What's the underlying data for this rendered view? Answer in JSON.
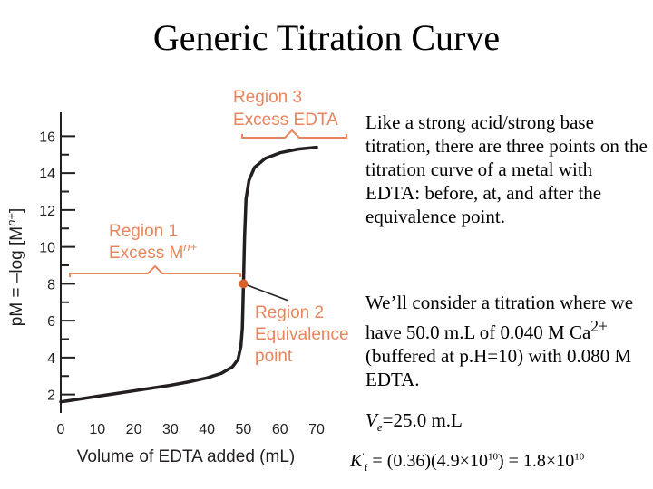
{
  "slide": {
    "title": "Generic Titration Curve",
    "para1": "Like a strong acid/strong base titration, there are three points on the titration curve of a metal with EDTA: before, at, and after the equivalence point.",
    "para2_before": "We’ll consider a titration where we have 50.0 m.L of 0.040 M Ca",
    "para2_sup": "2+",
    "para2_after": " (buffered at p.H=10) with 0.080 M EDTA.",
    "ve_symbol": "V",
    "ve_sub": "e",
    "ve_value": "=25.0 m.L",
    "kf_symbol": "K",
    "kf_prime": "′",
    "kf_sub": "f",
    "kf_eq_1": " = (0.36)(4.9×10",
    "kf_exp_1": "10",
    "kf_eq_2": ") = 1.8×10",
    "kf_exp_2": "10"
  },
  "chart_data": {
    "type": "line",
    "xlabel": "Volume of EDTA added (mL)",
    "ylabel_prefix": "pM = –log [M",
    "ylabel_sup": "n+",
    "ylabel_suffix": "]",
    "xlim": [
      0,
      70
    ],
    "ylim": [
      1,
      17
    ],
    "x_ticks": [
      0,
      10,
      20,
      30,
      40,
      50,
      60,
      70
    ],
    "y_ticks": [
      2,
      4,
      6,
      8,
      10,
      12,
      14,
      16
    ],
    "grid": false,
    "series": [
      {
        "points": [
          [
            0,
            1.6
          ],
          [
            5,
            1.75
          ],
          [
            10,
            1.9
          ],
          [
            15,
            2.05
          ],
          [
            20,
            2.2
          ],
          [
            25,
            2.35
          ],
          [
            30,
            2.5
          ],
          [
            35,
            2.68
          ],
          [
            40,
            2.9
          ],
          [
            44,
            3.15
          ],
          [
            47,
            3.5
          ],
          [
            48.5,
            3.9
          ],
          [
            49.3,
            4.6
          ],
          [
            49.7,
            5.6
          ],
          [
            50,
            8.0
          ],
          [
            50.3,
            10.5
          ],
          [
            50.7,
            12.6
          ],
          [
            51.5,
            13.6
          ],
          [
            53,
            14.3
          ],
          [
            56,
            14.8
          ],
          [
            60,
            15.1
          ],
          [
            65,
            15.3
          ],
          [
            70,
            15.4
          ]
        ]
      }
    ],
    "equivalence_point": {
      "x": 50,
      "y": 8
    },
    "annotations": {
      "region1_line1": "Region 1",
      "region1_line2_prefix": "Excess M",
      "region1_line2_sup": "n+",
      "region2_line1": "Region 2",
      "region2_line2": "Equivalence",
      "region2_line3": "point",
      "region3_line1": "Region 3",
      "region3_line2": "Excess EDTA"
    },
    "colors": {
      "annotation": "#e8855d",
      "marker": "#d9622b",
      "curve": "#231f20",
      "axis_text": "#231f20"
    }
  }
}
